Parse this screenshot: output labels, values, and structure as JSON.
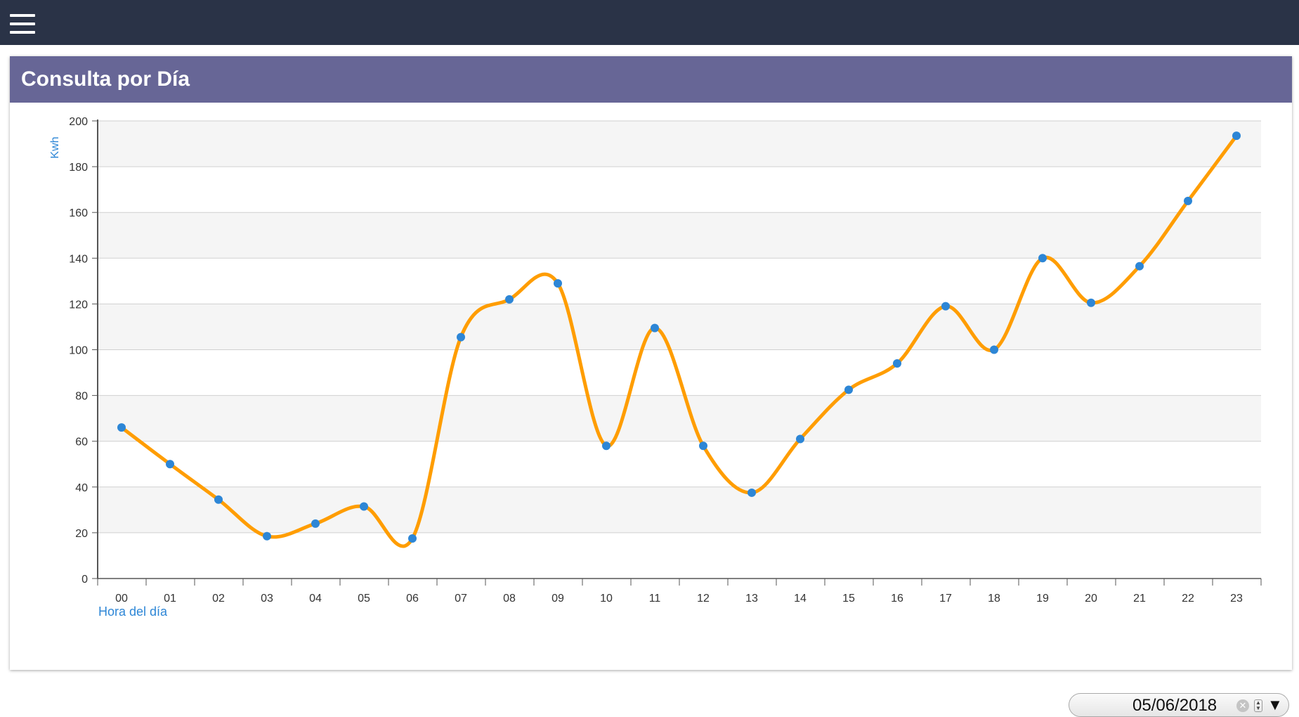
{
  "header": {
    "menu_icon": "hamburger-menu-icon"
  },
  "card": {
    "title": "Consulta por Día"
  },
  "date_picker": {
    "value": "05/06/2018",
    "clear_icon": "clear-icon",
    "spin_icon": "spin-icon",
    "dropdown_icon": "dropdown-arrow-icon"
  },
  "colors": {
    "topbar": "#2a3347",
    "card_header": "#676696",
    "line": "#ff9d00",
    "marker": "#2d86d6",
    "axis_title": "#2d86d6"
  },
  "chart_data": {
    "type": "line",
    "title": "",
    "xlabel": "Hora del día",
    "ylabel": "Kwh",
    "categories": [
      "00",
      "01",
      "02",
      "03",
      "04",
      "05",
      "06",
      "07",
      "08",
      "09",
      "10",
      "11",
      "12",
      "13",
      "14",
      "15",
      "16",
      "17",
      "18",
      "19",
      "20",
      "21",
      "22",
      "23"
    ],
    "series": [
      {
        "values": [
          66,
          50,
          34.5,
          18.5,
          24,
          31.5,
          17.5,
          105.5,
          122,
          129,
          58,
          109.5,
          58,
          37.5,
          61,
          82.5,
          94,
          119,
          100,
          140,
          120.5,
          136.5,
          165,
          193.5
        ]
      }
    ],
    "ylim": [
      0,
      200
    ],
    "yticks": [
      0,
      20,
      40,
      60,
      80,
      100,
      120,
      140,
      160,
      180,
      200
    ],
    "grid": true,
    "alternating_bands": true,
    "smooth": true,
    "markers": true,
    "legend": "none"
  }
}
